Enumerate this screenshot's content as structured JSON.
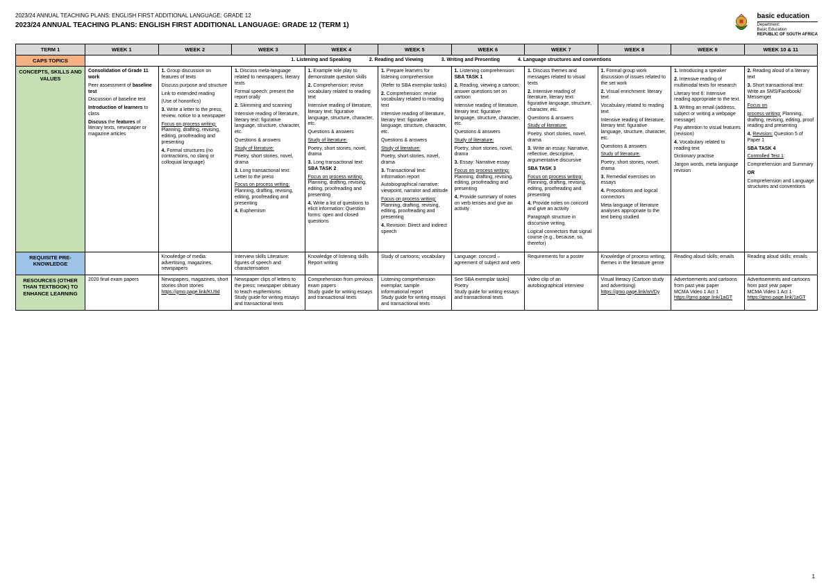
{
  "header": {
    "small_title": "2023/24 ANNUAL TEACHING PLANS: ENGLISH FIRST ADDITIONAL LANGUAGE: GRADE 12",
    "main_title": "2023/24 ANNUAL TEACHING PLANS: ENGLISH FIRST ADDITIONAL LANGUAGE: GRADE 12 (TERM 1)",
    "brand_main": "basic education",
    "brand_dept": "Department:",
    "brand_sub": "Basic Education",
    "brand_country": "REPUBLIC OF SOUTH AFRICA"
  },
  "columns": [
    "TERM 1",
    "WEEK 1",
    "WEEK 2",
    "WEEK 3",
    "WEEK 4",
    "WEEK 5",
    "WEEK 6",
    "WEEK 7",
    "WEEK 8",
    "WEEK 9",
    "WEEK 10 & 11"
  ],
  "caps": {
    "label": "CAPS TOPICS",
    "items": [
      "1. Listening and Speaking",
      "2. Reading and Viewing",
      "3. Writing and Presenting",
      "4. Language structures and conventions"
    ]
  },
  "concepts": {
    "label": "CONCEPTS, SKILLS AND VALUES",
    "weeks": [
      "<p><span class='b'>Consolidation of Grade 11 work</span></p><p>Peer assessment of <span class='b'>baseline test</span></p><p>Discussion of baseline test</p><p><span class='b'>Introduction of learners</span> to class</p><p><span class='b'>Discuss</span> the <span class='b'>features</span> of literary texts, newspaper or magazine articles</p>",
      "<p><span class='b'>1.</span> Group discussion on features of texts</p><p>Discuss purpose and structure</p><p>Link to extended reading</p><p>(Use of honorifics)</p><p><span class='b'>3.</span> Write a letter to the press, review, notice to a newspaper</p><p><span class='u'>Focus on process writing:</span> Planning, drafting, revising, editing, proofreading and presenting</p><p><span class='b'>4.</span> Formal structures (no contractions, no slang or colloquial language)</p>",
      "<p><span class='b'>1.</span> Discuss meta-language related to newspapers, literary texts</p><p>Formal speech: present the report orally</p><p><span class='b'>2.</span> Skimming and scanning</p><p>Intensive reading of literature, literary text: figurative language, structure, character, etc.</p><p>Questions &amp; answers</p><p><span class='u'>Study of literature:</span></p><p>Poetry, short stories, novel, drama</p><p><span class='b'>3.</span> Long transactional text: Letter to the press</p><p><span class='u'>Focus on process writing:</span> Planning, drafting, revising, editing, proofreading and presenting</p><p><span class='b'>4.</span> Euphemism</p>",
      "<p><span class='b'>1.</span> Example role play to demonstrate question skills</p><p><span class='b'>2.</span> Comprehension: revise vocabulary related to reading text</p><p>Intensive reading of literature, literary text: figurative language, structure, character, etc.</p><p>Questions &amp; answers</p><p><span class='u'>Study of literature:</span></p><p>Poetry, short stories, novel, drama</p><p><span class='b'>3.</span> Long transactional text: <span class='b'>SBA TASK 2</span></p><p><span class='u'>Focus on process writing:</span> Planning, drafting, revising, editing, proofreading and presenting</p><p><span class='b'>4.</span> Write a list of questions to elicit information: Question forms: open and closed questions</p>",
      "<p><span class='b'>1.</span> Prepare learners for listening comprehension</p><p>(Refer to SBA exemplar tasks)</p><p><span class='b'>2.</span> Comprehension: revise vocabulary related to reading text</p><p>Intensive reading of literature, literary text: figurative language, structure, character, etc.</p><p>Questions &amp; answers</p><p><span class='u'>Study of literature:</span></p><p>Poetry, short stories, novel, drama</p><p><span class='b'>3.</span> Transactional text: Information report</p><p>Autobiographical narrative: viewpoint, narrator and attitude</p><p><span class='u'>Focus on process writing:</span> Planning, drafting, revising, editing, proofreading and presenting</p><p><span class='b'>4.</span> Revision: Direct and indirect speech</p>",
      "<p><span class='b'>1.</span> Listening comprehension: <span class='b'>SBA TASK 1</span></p><p><span class='b'>2.</span> Reading, viewing a cartoon; answer questions set on cartoon</p><p>Intensive reading of literature, literary text: figurative language, structure, character, etc.</p><p>Questions &amp; answers</p><p><span class='u'>Study of literature:</span></p><p>Poetry, short stories, novel, drama</p><p><span class='b'>3.</span> Essay: Narrative essay</p><p><span class='u'>Focus on process writing:</span> Planning, drafting, revising, editing, proofreading and presenting</p><p><span class='b'>4.</span> Provide summary of notes on verb tenses and give an activity</p>",
      "<p><span class='b'>1.</span> Discuss themes and messages related to visual texts</p><p><span class='b'>2.</span> Intensive reading of literature, literary text: figurative language, structure, character, etc.</p><p>Questions &amp; answers</p><p><span class='u'>Study of literature:</span></p><p>Poetry, short stories, novel, drama</p><p><span class='b'>3.</span> Write an essay: Narrative, reflective, descriptive, argumentative discursive</p><p><span class='b'>SBA TASK 3</span></p><p><span class='u'>Focus on process writing:</span> Planning, drafting, revising, editing, proofreading and presenting</p><p><span class='b'>4.</span> Provide notes on concord and give an activity</p><p>Paragraph structure in discursive writing</p><p>Logical connectors that signal course (e.g., because, so, therefor)</p>",
      "<p><span class='b'>1.</span> Formal group work discussion of issues related to the set work</p><p><span class='b'>2.</span> Visual enrichment: literary text</p><p>Vocabulary related to reading text</p><p>Intensive reading of literature, literary text: figurative language, structure, character, etc.</p><p>Questions &amp; answers</p><p><span class='u'>Study of literature:</span></p><p>Poetry, short stories, novel, drama</p><p><span class='b'>3.</span> Remedial exercises on essays</p><p><span class='b'>4.</span> Prepositions and logical connectors</p><p>Meta language of literature analyses appropriate to the text being studied.</p>",
      "<p><span class='b'>1.</span> Introducing a speaker</p><p><span class='b'>2.</span> Intensive reading of multimodal texts for research</p><p>Literary text 6: Intensive reading appropriate to the text.</p><p><span class='b'>3.</span> Writing an email (address, subject or writing a webpage message)</p><p>Pay attention to visual features (revision)</p><p><span class='b'>4.</span> Vocabulary related to reading text</p><p>Dictionary practise</p><p>Jargon words, meta language revision</p>",
      "<p><span class='b'>2.</span> Reading aloud of a literary text</p><p><span class='b'>3.</span> Short transactional text: Write an SMS/Facebook/ Messenger</p><p><span class='u'>Focus on</span></p><p><span class='u'>process writing:</span> Planning, drafting, revising, editing, proof reading and presenting</p><p><span class='b'>4.</span> <span class='u'>Revision:</span> Question 5 of Paper 1</p><p><span class='b'>SBA TASK 4</span></p><p><span class='u'>Controlled Test 1</span>:</p><p>Comprehension and Summary</p><p><span class='b'>OR</span></p><p>Comprehension and Language structures and conventions</p>"
    ]
  },
  "requisite": {
    "label": "REQUISITE PRE-KNOWLEDGE",
    "weeks": [
      "",
      "Knowledge of media: advertising, magazines, newspapers",
      "Interview skills Literature: figures of speech and characterisation",
      "Knowledge of listening skills<br>Report writing",
      "Study of cartoons; vocabulary",
      "Language: concord – agreement of subject and verb",
      "Requirements for a poster",
      "Knowledge of process writing; themes in the literature genre",
      "Reading aloud skills; emails",
      "Reading aloud skills; emails"
    ]
  },
  "resources": {
    "label": "RESOURCES (OTHER THAN TEXTBOOK) TO ENHANCE LEARNING",
    "weeks": [
      "2020 final exam papers",
      "Newspapers, magazines, short stories short stories<br><a class='link'>https://gmo.page.link/KU9d</a>",
      "Newspaper clips of letters to the press; newspaper obituary to teach euphemisms<br>Study guide for writing essays and transactional texts",
      "Comprehension from previous exam papers<br>Study guide for writing essays and transactional texts",
      "Listening comprehension exemplar; sample informational report<br>Study guide for writing essays and transactional texts",
      "See SBA exemplar tasks]<br>Poetry<br>Study guide for writing essays and transactional texts",
      "Video clip of an autobiographical interview",
      "Visual literacy (Cartoon study and advertising)<br><a class='link'>https://gmo.page.link/wVDy</a>",
      "Advertisements and cartoons from past year paper<br>MCMA Video 1 Act 1<br><a class='link'>https://gmo.page.link/1aGT</a>",
      "Advertisements and cartoons from past year paper<br>MCMA Video 1 Act 1<br><a class='link'>https://gmo.page.link/1aGT</a>"
    ]
  },
  "page_number": "1"
}
